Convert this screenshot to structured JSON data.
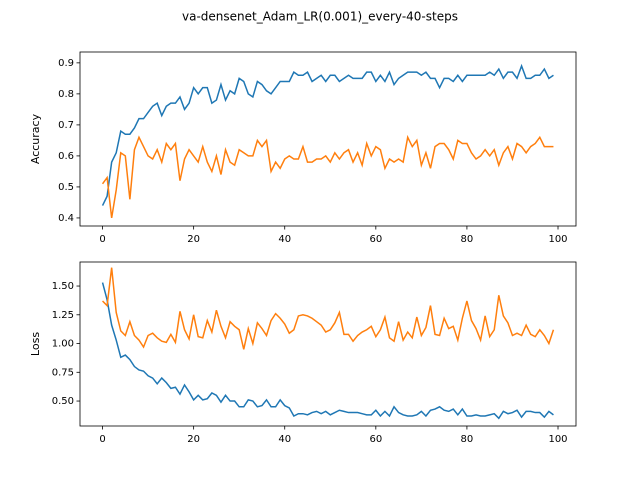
{
  "title": "va-densenet_Adam_LR(0.001)_every-40-steps",
  "chart_data": [
    {
      "type": "line",
      "ylabel": "Accuracy",
      "x": [
        0,
        1,
        2,
        3,
        4,
        5,
        6,
        7,
        8,
        9,
        10,
        11,
        12,
        13,
        14,
        15,
        16,
        17,
        18,
        19,
        20,
        21,
        22,
        23,
        24,
        25,
        26,
        27,
        28,
        29,
        30,
        31,
        32,
        33,
        34,
        35,
        36,
        37,
        38,
        39,
        40,
        41,
        42,
        43,
        44,
        45,
        46,
        47,
        48,
        49,
        50,
        51,
        52,
        53,
        54,
        55,
        56,
        57,
        58,
        59,
        60,
        61,
        62,
        63,
        64,
        65,
        66,
        67,
        68,
        69,
        70,
        71,
        72,
        73,
        74,
        75,
        76,
        77,
        78,
        79,
        80,
        81,
        82,
        83,
        84,
        85,
        86,
        87,
        88,
        89,
        90,
        91,
        92,
        93,
        94,
        95,
        96,
        97,
        98,
        99
      ],
      "xlim": [
        -4.95,
        103.95
      ],
      "ylim": [
        0.374,
        0.935
      ],
      "xticks": [
        0,
        20,
        40,
        60,
        80,
        100
      ],
      "yticks": [
        0.4,
        0.5,
        0.6,
        0.7,
        0.8,
        0.9
      ],
      "series": [
        {
          "color": "#1f77b4",
          "values": [
            0.44,
            0.47,
            0.58,
            0.61,
            0.68,
            0.67,
            0.67,
            0.69,
            0.72,
            0.72,
            0.74,
            0.76,
            0.77,
            0.73,
            0.76,
            0.77,
            0.77,
            0.79,
            0.75,
            0.77,
            0.82,
            0.8,
            0.82,
            0.82,
            0.77,
            0.78,
            0.83,
            0.78,
            0.81,
            0.8,
            0.85,
            0.84,
            0.8,
            0.79,
            0.84,
            0.83,
            0.81,
            0.8,
            0.82,
            0.84,
            0.84,
            0.84,
            0.87,
            0.86,
            0.86,
            0.87,
            0.84,
            0.85,
            0.86,
            0.84,
            0.86,
            0.86,
            0.84,
            0.85,
            0.86,
            0.85,
            0.85,
            0.85,
            0.87,
            0.87,
            0.84,
            0.86,
            0.84,
            0.87,
            0.83,
            0.85,
            0.86,
            0.87,
            0.87,
            0.87,
            0.86,
            0.87,
            0.85,
            0.85,
            0.82,
            0.85,
            0.85,
            0.84,
            0.86,
            0.84,
            0.86,
            0.86,
            0.86,
            0.86,
            0.86,
            0.87,
            0.86,
            0.88,
            0.85,
            0.87,
            0.87,
            0.85,
            0.89,
            0.85,
            0.85,
            0.86,
            0.86,
            0.88,
            0.85,
            0.86
          ]
        },
        {
          "color": "#ff7f0e",
          "values": [
            0.51,
            0.53,
            0.4,
            0.49,
            0.61,
            0.6,
            0.46,
            0.62,
            0.66,
            0.63,
            0.6,
            0.59,
            0.62,
            0.58,
            0.64,
            0.62,
            0.64,
            0.52,
            0.59,
            0.62,
            0.6,
            0.58,
            0.63,
            0.58,
            0.55,
            0.6,
            0.54,
            0.62,
            0.58,
            0.57,
            0.62,
            0.61,
            0.6,
            0.6,
            0.65,
            0.63,
            0.65,
            0.55,
            0.58,
            0.56,
            0.59,
            0.6,
            0.59,
            0.59,
            0.63,
            0.58,
            0.58,
            0.59,
            0.59,
            0.6,
            0.58,
            0.61,
            0.59,
            0.61,
            0.62,
            0.58,
            0.61,
            0.57,
            0.64,
            0.6,
            0.63,
            0.62,
            0.56,
            0.59,
            0.58,
            0.59,
            0.58,
            0.66,
            0.63,
            0.65,
            0.57,
            0.61,
            0.56,
            0.63,
            0.64,
            0.64,
            0.62,
            0.59,
            0.65,
            0.64,
            0.64,
            0.61,
            0.59,
            0.6,
            0.62,
            0.6,
            0.62,
            0.57,
            0.61,
            0.63,
            0.59,
            0.64,
            0.63,
            0.61,
            0.63,
            0.64,
            0.66,
            0.63,
            0.63,
            0.63
          ]
        }
      ]
    },
    {
      "type": "line",
      "ylabel": "Loss",
      "x": [
        0,
        1,
        2,
        3,
        4,
        5,
        6,
        7,
        8,
        9,
        10,
        11,
        12,
        13,
        14,
        15,
        16,
        17,
        18,
        19,
        20,
        21,
        22,
        23,
        24,
        25,
        26,
        27,
        28,
        29,
        30,
        31,
        32,
        33,
        34,
        35,
        36,
        37,
        38,
        39,
        40,
        41,
        42,
        43,
        44,
        45,
        46,
        47,
        48,
        49,
        50,
        51,
        52,
        53,
        54,
        55,
        56,
        57,
        58,
        59,
        60,
        61,
        62,
        63,
        64,
        65,
        66,
        67,
        68,
        69,
        70,
        71,
        72,
        73,
        74,
        75,
        76,
        77,
        78,
        79,
        80,
        81,
        82,
        83,
        84,
        85,
        86,
        87,
        88,
        89,
        90,
        91,
        92,
        93,
        94,
        95,
        96,
        97,
        98,
        99
      ],
      "xlim": [
        -4.95,
        103.95
      ],
      "ylim": [
        0.283,
        1.709
      ],
      "xticks": [
        0,
        20,
        40,
        60,
        80,
        100
      ],
      "yticks": [
        {
          "value": 0.5,
          "label": "0.50"
        },
        {
          "value": 0.75,
          "label": "0.75"
        },
        {
          "value": 1.0,
          "label": "1.00"
        },
        {
          "value": 1.25,
          "label": "1.25"
        },
        {
          "value": 1.5,
          "label": "1.50"
        }
      ],
      "series": [
        {
          "color": "#1f77b4",
          "values": [
            1.53,
            1.38,
            1.16,
            1.03,
            0.88,
            0.9,
            0.86,
            0.8,
            0.77,
            0.76,
            0.72,
            0.7,
            0.65,
            0.7,
            0.66,
            0.61,
            0.62,
            0.56,
            0.64,
            0.58,
            0.51,
            0.55,
            0.51,
            0.52,
            0.57,
            0.55,
            0.49,
            0.55,
            0.5,
            0.5,
            0.45,
            0.45,
            0.51,
            0.5,
            0.45,
            0.46,
            0.51,
            0.45,
            0.45,
            0.51,
            0.46,
            0.44,
            0.37,
            0.39,
            0.39,
            0.38,
            0.4,
            0.41,
            0.39,
            0.41,
            0.38,
            0.4,
            0.42,
            0.41,
            0.4,
            0.4,
            0.4,
            0.39,
            0.38,
            0.38,
            0.42,
            0.37,
            0.41,
            0.37,
            0.45,
            0.4,
            0.38,
            0.37,
            0.37,
            0.38,
            0.41,
            0.37,
            0.42,
            0.43,
            0.45,
            0.42,
            0.41,
            0.43,
            0.38,
            0.43,
            0.37,
            0.37,
            0.38,
            0.37,
            0.37,
            0.38,
            0.39,
            0.35,
            0.41,
            0.39,
            0.4,
            0.42,
            0.36,
            0.41,
            0.41,
            0.4,
            0.4,
            0.36,
            0.41,
            0.38
          ]
        },
        {
          "color": "#ff7f0e",
          "values": [
            1.37,
            1.33,
            1.66,
            1.27,
            1.11,
            1.07,
            1.19,
            1.07,
            1.03,
            0.97,
            1.07,
            1.09,
            1.05,
            1.02,
            1.01,
            1.08,
            1.01,
            1.28,
            1.12,
            1.04,
            1.25,
            1.06,
            1.05,
            1.2,
            1.1,
            1.29,
            1.15,
            1.05,
            1.19,
            1.15,
            1.12,
            0.95,
            1.13,
            1.0,
            1.18,
            1.13,
            1.07,
            1.2,
            1.26,
            1.22,
            1.17,
            1.09,
            1.12,
            1.24,
            1.25,
            1.24,
            1.22,
            1.19,
            1.16,
            1.1,
            1.12,
            1.18,
            1.27,
            1.08,
            1.08,
            1.02,
            1.07,
            1.1,
            1.12,
            1.15,
            1.06,
            1.12,
            1.23,
            1.05,
            1.02,
            1.19,
            1.03,
            1.1,
            1.05,
            1.23,
            1.07,
            1.14,
            1.33,
            1.08,
            1.07,
            1.22,
            1.13,
            1.15,
            1.03,
            1.22,
            1.37,
            1.2,
            1.13,
            1.03,
            1.24,
            1.06,
            1.12,
            1.42,
            1.24,
            1.18,
            1.07,
            1.09,
            1.07,
            1.16,
            1.08,
            1.06,
            1.12,
            1.07,
            1.0,
            1.12
          ]
        }
      ]
    }
  ]
}
